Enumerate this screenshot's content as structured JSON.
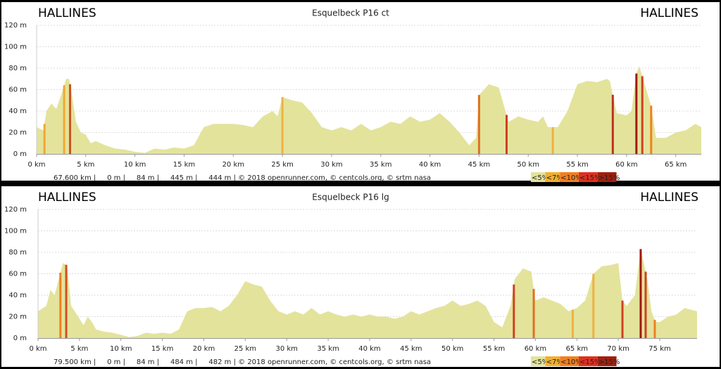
{
  "chart_data": [
    {
      "type": "area",
      "title": "Esquelbeck P16 ct",
      "start_label": "HALLINES",
      "end_label": "HALLINES",
      "color": "#e3e39c",
      "x": [
        0,
        0.7,
        1,
        1.5,
        2,
        2.5,
        3,
        3.3,
        3.6,
        4,
        4.5,
        5,
        5.5,
        6,
        7,
        8,
        9,
        10,
        11,
        12,
        13,
        14,
        15,
        16,
        17,
        18,
        19,
        20,
        21,
        22,
        23,
        24,
        24.5,
        25,
        26,
        27,
        28,
        29,
        30,
        31,
        32,
        33,
        34,
        35,
        36,
        37,
        38,
        39,
        40,
        41,
        42,
        43,
        44,
        44.7,
        45,
        46,
        47,
        48,
        49,
        50,
        51,
        51.5,
        52,
        53,
        54,
        55,
        56,
        57,
        58,
        58.3,
        59,
        60,
        60.5,
        61,
        61.3,
        62,
        62.5,
        63,
        64,
        65,
        66,
        67,
        67.6
      ],
      "values": [
        25,
        22,
        40,
        47,
        42,
        55,
        70,
        70,
        55,
        30,
        20,
        18,
        10,
        12,
        8,
        5,
        4,
        2,
        1,
        5,
        4,
        6,
        5,
        8,
        25,
        28,
        28,
        28,
        27,
        25,
        35,
        40,
        35,
        53,
        50,
        48,
        38,
        25,
        22,
        25,
        22,
        28,
        22,
        25,
        30,
        28,
        35,
        30,
        32,
        38,
        30,
        20,
        8,
        15,
        55,
        65,
        62,
        30,
        35,
        32,
        30,
        35,
        25,
        25,
        40,
        65,
        68,
        67,
        70,
        68,
        38,
        36,
        40,
        75,
        82,
        60,
        45,
        15,
        15,
        20,
        22,
        28,
        25
      ],
      "steep_x": [
        0.8,
        2.8,
        3.4,
        25,
        45,
        47.8,
        52.5,
        58.6,
        61,
        61.6,
        62.5
      ],
      "steep_colors": [
        "#f0a830",
        "#f0a830",
        "#d05020",
        "#f0b040",
        "#e07020",
        "#d04020",
        "#f0b040",
        "#c03020",
        "#a01810",
        "#d04020",
        "#f08020"
      ],
      "xlim": [
        0,
        67.6
      ],
      "ylim": [
        0,
        120
      ],
      "xticks": [
        {
          "value": 0,
          "label": "0 km"
        },
        {
          "value": 5,
          "label": "5 km"
        },
        {
          "value": 10,
          "label": "10 km"
        },
        {
          "value": 15,
          "label": "15 km"
        },
        {
          "value": 20,
          "label": "20 km"
        },
        {
          "value": 25,
          "label": "25 km"
        },
        {
          "value": 30,
          "label": "30 km"
        },
        {
          "value": 35,
          "label": "35 km"
        },
        {
          "value": 40,
          "label": "40 km"
        },
        {
          "value": 45,
          "label": "45 km"
        },
        {
          "value": 50,
          "label": "50 km"
        },
        {
          "value": 55,
          "label": "55 km"
        },
        {
          "value": 60,
          "label": "60 km"
        },
        {
          "value": 65,
          "label": "65 km"
        }
      ],
      "yticks": [
        {
          "value": 0,
          "label": "0 m"
        },
        {
          "value": 20,
          "label": "20 m"
        },
        {
          "value": 40,
          "label": "40 m"
        },
        {
          "value": 60,
          "label": "60 m"
        },
        {
          "value": 80,
          "label": "80 m"
        },
        {
          "value": 100,
          "label": "100 m"
        },
        {
          "value": 120,
          "label": "120 m"
        }
      ],
      "grid": true,
      "footer": "67.600 km |     0 m |     84 m |     445 m |     444 m | © 2018 openrunner.com, © centcols.org, © srtm nasa",
      "legend": [
        {
          "label": "<5%",
          "color": "#e3e39c"
        },
        {
          "label": "<7%",
          "color": "#f0b030"
        },
        {
          "label": "<10%",
          "color": "#f08020"
        },
        {
          "label": "<15%",
          "color": "#e03020"
        },
        {
          "label": ">15%",
          "color": "#a02010"
        }
      ]
    },
    {
      "type": "area",
      "title": "Esquelbeck P16 lg",
      "start_label": "HALLINES",
      "end_label": "HALLINES",
      "color": "#e3e39c",
      "x": [
        0,
        1,
        1.5,
        2,
        2.5,
        3,
        3.5,
        4,
        5,
        5.5,
        6,
        6.5,
        7,
        8,
        9,
        10,
        11,
        12,
        13,
        14,
        15,
        16,
        17,
        18,
        19,
        20,
        21,
        22,
        23,
        24,
        25,
        26,
        27,
        28,
        29,
        30,
        31,
        32,
        33,
        34,
        35,
        36,
        37,
        38,
        39,
        40,
        41,
        42,
        43,
        44,
        45,
        46,
        47,
        48,
        49,
        50,
        51,
        52,
        53,
        54,
        55,
        56,
        57,
        57.5,
        58.5,
        59.5,
        60,
        61,
        62,
        63,
        64,
        65,
        66,
        67,
        68,
        69,
        70,
        70.5,
        71,
        72,
        72.7,
        73.5,
        74,
        74.5,
        75,
        76,
        77,
        78,
        79.5
      ],
      "values": [
        25,
        30,
        45,
        40,
        55,
        70,
        68,
        30,
        18,
        12,
        20,
        15,
        8,
        6,
        5,
        3,
        1,
        2,
        5,
        4,
        5,
        4,
        8,
        25,
        28,
        28,
        29,
        25,
        30,
        40,
        53,
        50,
        48,
        35,
        25,
        22,
        25,
        22,
        28,
        22,
        25,
        22,
        20,
        22,
        20,
        22,
        20,
        20,
        18,
        20,
        25,
        22,
        25,
        28,
        30,
        35,
        30,
        32,
        35,
        30,
        15,
        10,
        30,
        55,
        65,
        62,
        35,
        38,
        35,
        32,
        25,
        28,
        35,
        60,
        67,
        68,
        70,
        35,
        30,
        40,
        83,
        55,
        25,
        15,
        15,
        20,
        22,
        28,
        25
      ],
      "steep_x": [
        2.7,
        3.4,
        57.4,
        59.8,
        64.5,
        67,
        70.5,
        72.7,
        73.3,
        74.4
      ],
      "steep_colors": [
        "#f08020",
        "#d05020",
        "#d04020",
        "#e07020",
        "#f0b040",
        "#f0b040",
        "#d04020",
        "#a01810",
        "#d04020",
        "#f08020"
      ],
      "xlim": [
        0,
        79.5
      ],
      "ylim": [
        0,
        120
      ],
      "xticks": [
        {
          "value": 0,
          "label": "0 km"
        },
        {
          "value": 5,
          "label": "5 km"
        },
        {
          "value": 10,
          "label": "10 km"
        },
        {
          "value": 15,
          "label": "15 km"
        },
        {
          "value": 20,
          "label": "20 km"
        },
        {
          "value": 25,
          "label": "25 km"
        },
        {
          "value": 30,
          "label": "30 km"
        },
        {
          "value": 35,
          "label": "35 km"
        },
        {
          "value": 40,
          "label": "40 km"
        },
        {
          "value": 45,
          "label": "45 km"
        },
        {
          "value": 50,
          "label": "50 km"
        },
        {
          "value": 55,
          "label": "55 km"
        },
        {
          "value": 60,
          "label": "60 km"
        },
        {
          "value": 65,
          "label": "65 km"
        },
        {
          "value": 70,
          "label": "70 km"
        },
        {
          "value": 75,
          "label": "75 km"
        }
      ],
      "yticks": [
        {
          "value": 0,
          "label": "0 m"
        },
        {
          "value": 20,
          "label": "20 m"
        },
        {
          "value": 40,
          "label": "40 m"
        },
        {
          "value": 60,
          "label": "60 m"
        },
        {
          "value": 80,
          "label": "80 m"
        },
        {
          "value": 100,
          "label": "100 m"
        },
        {
          "value": 120,
          "label": "120 m"
        }
      ],
      "grid": true,
      "footer": "79.500 km |     0 m |     84 m |     484 m |     482 m | © 2018 openrunner.com, © centcols.org, © srtm nasa",
      "legend": [
        {
          "label": "<5%",
          "color": "#e3e39c"
        },
        {
          "label": "<7%",
          "color": "#f0b030"
        },
        {
          "label": "<10%",
          "color": "#f08020"
        },
        {
          "label": "<15%",
          "color": "#e03020"
        },
        {
          "label": ">15%",
          "color": "#a02010"
        }
      ]
    }
  ]
}
